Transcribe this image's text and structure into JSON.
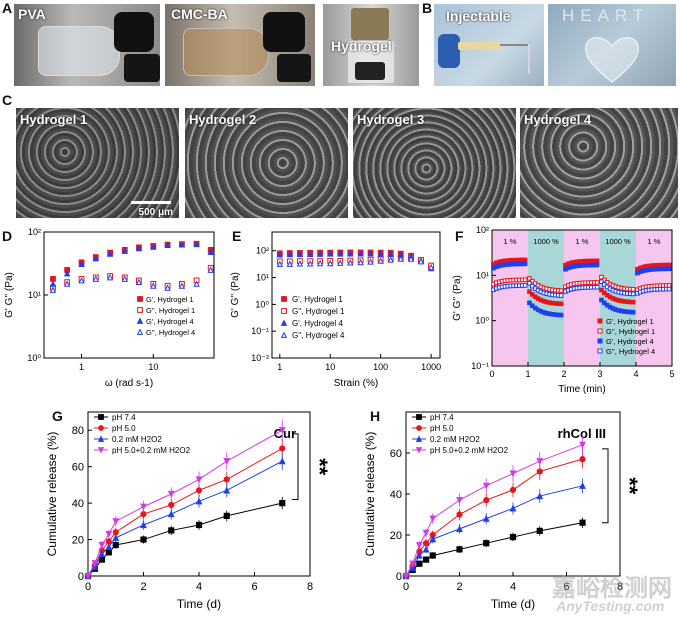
{
  "panels": {
    "A": {
      "label": "A",
      "captions": [
        "PVA",
        "CMC-BA",
        "Hydrogel"
      ]
    },
    "B": {
      "label": "B",
      "captions": [
        "Injectable"
      ],
      "letters": "HEART"
    },
    "C": {
      "label": "C",
      "captions": [
        "Hydrogel 1",
        "Hydrogel 2",
        "Hydrogel 3",
        "Hydrogel 4"
      ],
      "scalebar": "500 μm"
    },
    "D": {
      "label": "D"
    },
    "E": {
      "label": "E"
    },
    "F": {
      "label": "F"
    },
    "G": {
      "label": "G"
    },
    "H": {
      "label": "H"
    }
  },
  "watermark": {
    "cn": "嘉峪检测网",
    "en": "AnyTesting.com"
  },
  "colors": {
    "red": "#e8151b",
    "blue": "#1f3ff0",
    "black": "#000000",
    "magenta": "#d23be8",
    "pink_band": "#f7c6ee",
    "teal_band": "#a9d7d8"
  },
  "chart_data": [
    {
      "id": "D",
      "type": "scatter",
      "xscale": "log",
      "yscale": "log",
      "xlabel": "ω (rad s-1)",
      "ylabel": "G' G'' (Pa)",
      "xlim": [
        0.3,
        70
      ],
      "ylim": [
        1,
        100
      ],
      "xticks": [
        "1",
        "10"
      ],
      "yticks": [
        "10⁰",
        "10¹",
        "10²"
      ],
      "legend": [
        "G', Hydrogel 1",
        "G'', Hydrogel 1",
        "G', Hydrogel 4",
        "G'', Hydrogel 4"
      ],
      "x": [
        0.4,
        0.63,
        1.0,
        1.58,
        2.5,
        4.0,
        6.3,
        10,
        15.8,
        25,
        40,
        63
      ],
      "series": [
        {
          "name": "G', Hydrogel 1",
          "marker": "square-filled",
          "color": "#e8151b",
          "values": [
            18,
            25,
            33,
            40,
            47,
            52,
            57,
            60,
            63,
            64,
            65,
            52
          ]
        },
        {
          "name": "G'', Hydrogel 1",
          "marker": "square-open",
          "color": "#e8151b",
          "values": [
            13,
            16,
            18,
            19,
            20,
            19,
            17,
            15,
            14,
            15,
            17,
            27
          ]
        },
        {
          "name": "G', Hydrogel 4",
          "marker": "triangle-filled",
          "color": "#1f3ff0",
          "values": [
            15,
            22,
            31,
            38,
            45,
            50,
            55,
            58,
            62,
            63,
            64,
            48
          ]
        },
        {
          "name": "G'', Hydrogel 4",
          "marker": "triangle-open",
          "color": "#1f3ff0",
          "values": [
            12,
            15,
            17,
            18,
            19,
            18,
            16,
            14,
            13,
            14,
            15,
            25
          ]
        }
      ]
    },
    {
      "id": "E",
      "type": "scatter",
      "xscale": "log",
      "yscale": "log",
      "xlabel": "Strain (%)",
      "ylabel": "G' G'' (Pa)",
      "xlim": [
        0.7,
        1500
      ],
      "ylim": [
        0.01,
        500
      ],
      "xticks": [
        "1",
        "10",
        "100",
        "1000"
      ],
      "yticks": [
        "10⁻²",
        "10⁻¹",
        "10⁰",
        "10¹",
        "10²"
      ],
      "legend": [
        "G', Hydrogel 1",
        "G'', Hydrogel 1",
        "G', Hydrogel 4",
        "G'', Hydrogel 4"
      ],
      "x": [
        1,
        1.58,
        2.5,
        4,
        6.3,
        10,
        15.8,
        25,
        40,
        63,
        100,
        158,
        250,
        400,
        630,
        1000
      ],
      "series": [
        {
          "name": "G', Hydrogel 1",
          "marker": "square-filled",
          "color": "#e8151b",
          "values": [
            80,
            82,
            83,
            84,
            85,
            85,
            86,
            86,
            86,
            86,
            85,
            84,
            78,
            65,
            45,
            25
          ]
        },
        {
          "name": "G'', Hydrogel 1",
          "marker": "square-open",
          "color": "#e8151b",
          "values": [
            40,
            40,
            41,
            41,
            41,
            42,
            42,
            43,
            44,
            46,
            48,
            52,
            55,
            55,
            45,
            28
          ]
        },
        {
          "name": "G', Hydrogel 4",
          "marker": "triangle-filled",
          "color": "#1f3ff0",
          "values": [
            72,
            73,
            74,
            75,
            76,
            77,
            77,
            78,
            78,
            78,
            77,
            75,
            70,
            60,
            42,
            22
          ]
        },
        {
          "name": "G'', Hydrogel 4",
          "marker": "triangle-open",
          "color": "#1f3ff0",
          "values": [
            32,
            32,
            33,
            33,
            34,
            34,
            35,
            36,
            37,
            39,
            42,
            46,
            50,
            50,
            40,
            24
          ]
        }
      ]
    },
    {
      "id": "F",
      "type": "scatter",
      "yscale": "log",
      "xlabel": "Time (min)",
      "ylabel": "G' G'' (Pa)",
      "xlim": [
        0,
        5
      ],
      "ylim": [
        0.1,
        100
      ],
      "xticks": [
        "0",
        "1",
        "2",
        "3",
        "4",
        "5"
      ],
      "yticks": [
        "10⁻¹",
        "10⁰",
        "10¹",
        "10²"
      ],
      "bands": [
        {
          "from": 0,
          "to": 1,
          "label": "1 %",
          "color": "#f7c6ee"
        },
        {
          "from": 1,
          "to": 2,
          "label": "1000 %",
          "color": "#a9d7d8"
        },
        {
          "from": 2,
          "to": 3,
          "label": "1 %",
          "color": "#f7c6ee"
        },
        {
          "from": 3,
          "to": 4,
          "label": "1000 %",
          "color": "#a9d7d8"
        },
        {
          "from": 4,
          "to": 5,
          "label": "1 %",
          "color": "#f7c6ee"
        }
      ],
      "legend": [
        "G', Hydrogel 1",
        "G'', Hydrogel 1",
        "G', Hydrogel 4",
        "G'', Hydrogel 4"
      ],
      "series": [
        {
          "name": "G', Hydrogel 1",
          "marker": "square-filled",
          "color": "#e8151b",
          "levels": [
            22,
            2.3,
            21,
            2.5,
            17
          ]
        },
        {
          "name": "G'', Hydrogel 1",
          "marker": "square-open",
          "color": "#e8151b",
          "levels": [
            8,
            4.5,
            7,
            4.8,
            6
          ]
        },
        {
          "name": "G', Hydrogel 4",
          "marker": "square-filled",
          "color": "#1f3ff0",
          "levels": [
            18,
            1.3,
            17,
            1.5,
            14
          ]
        },
        {
          "name": "G'', Hydrogel 4",
          "marker": "square-open",
          "color": "#1f3ff0",
          "levels": [
            6,
            3.5,
            5.5,
            3.8,
            5
          ]
        }
      ]
    },
    {
      "id": "G",
      "type": "line",
      "title": "Cur",
      "xlabel": "Time (d)",
      "ylabel": "Cumulative release (%)",
      "xlim": [
        0,
        8
      ],
      "ylim": [
        0,
        90
      ],
      "xticks": [
        "0",
        "2",
        "4",
        "6",
        "8"
      ],
      "yticks": [
        "0",
        "20",
        "40",
        "60",
        "80"
      ],
      "significance": "**",
      "x": [
        0,
        0.25,
        0.5,
        0.75,
        1,
        2,
        3,
        4,
        5,
        7
      ],
      "series": [
        {
          "name": "pH 7.4",
          "marker": "square",
          "color": "#000000",
          "values": [
            0,
            4,
            9,
            13,
            17,
            20,
            25,
            28,
            33,
            40
          ]
        },
        {
          "name": "pH 5.0",
          "marker": "circle",
          "color": "#e8151b",
          "values": [
            0,
            6,
            14,
            19,
            24,
            34,
            39,
            47,
            53,
            70
          ]
        },
        {
          "name": "0.2 mM H2O2",
          "marker": "triangle",
          "color": "#1f3ff0",
          "values": [
            0,
            5,
            12,
            16,
            21,
            28,
            34,
            41,
            47,
            63
          ]
        },
        {
          "name": "pH 5.0+0.2 mM H2O2",
          "marker": "triangle-down",
          "color": "#d23be8",
          "values": [
            0,
            7,
            17,
            23,
            30,
            38,
            45,
            53,
            63,
            80
          ]
        }
      ]
    },
    {
      "id": "H",
      "type": "line",
      "title": "rhCol III",
      "xlabel": "Time (d)",
      "ylabel": "Cumulative release (%)",
      "xlim": [
        0,
        8
      ],
      "ylim": [
        0,
        80
      ],
      "xticks": [
        "0",
        "2",
        "4",
        "6",
        "8"
      ],
      "yticks": [
        "0",
        "20",
        "40",
        "60"
      ],
      "significance": "**",
      "x": [
        0,
        0.25,
        0.5,
        0.75,
        1,
        2,
        3,
        4,
        5,
        6.6
      ],
      "series": [
        {
          "name": "pH 7.4",
          "marker": "square",
          "color": "#000000",
          "values": [
            0,
            3,
            6,
            8,
            10,
            13,
            16,
            19,
            22,
            26
          ]
        },
        {
          "name": "pH 5.0",
          "marker": "circle",
          "color": "#e8151b",
          "values": [
            0,
            5,
            12,
            16,
            20,
            30,
            37,
            42,
            51,
            57
          ]
        },
        {
          "name": "0.2 mM H2O2",
          "marker": "triangle",
          "color": "#1f3ff0",
          "values": [
            0,
            4,
            10,
            13,
            18,
            23,
            28,
            33,
            39,
            44
          ]
        },
        {
          "name": "pH 5.0+0.2 mM H2O2",
          "marker": "triangle-down",
          "color": "#d23be8",
          "values": [
            0,
            6,
            15,
            21,
            28,
            37,
            44,
            50,
            56,
            64
          ]
        }
      ]
    }
  ]
}
